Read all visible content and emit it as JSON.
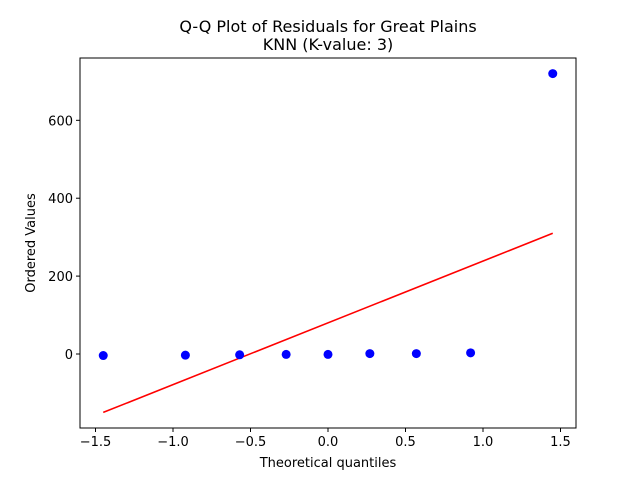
{
  "chart_data": {
    "type": "scatter",
    "title_line1": "Q-Q Plot of Residuals for Great Plains",
    "title_line2": "KNN (K-value: 3)",
    "xlabel": "Theoretical quantiles",
    "ylabel": "Ordered Values",
    "xlim": [
      -1.6,
      1.6
    ],
    "ylim": [
      -190,
      760
    ],
    "xticks": [
      -1.5,
      -1.0,
      -0.5,
      0.0,
      0.5,
      1.0,
      1.5
    ],
    "xtick_labels": [
      "−1.5",
      "−1.0",
      "−0.5",
      "0.0",
      "0.5",
      "1.0",
      "1.5"
    ],
    "yticks": [
      0,
      200,
      400,
      600
    ],
    "ytick_labels": [
      "0",
      "200",
      "400",
      "600"
    ],
    "grid": false,
    "points": {
      "x": [
        -1.45,
        -0.92,
        -0.57,
        -0.27,
        0.0,
        0.27,
        0.57,
        0.92,
        1.45
      ],
      "y": [
        -4,
        -3,
        -2,
        -1,
        -1,
        1,
        1,
        3,
        720
      ],
      "color": "#0000ff"
    },
    "fit_line": {
      "x": [
        -1.45,
        1.45
      ],
      "y": [
        -150,
        310
      ],
      "color": "#ff0000"
    }
  }
}
